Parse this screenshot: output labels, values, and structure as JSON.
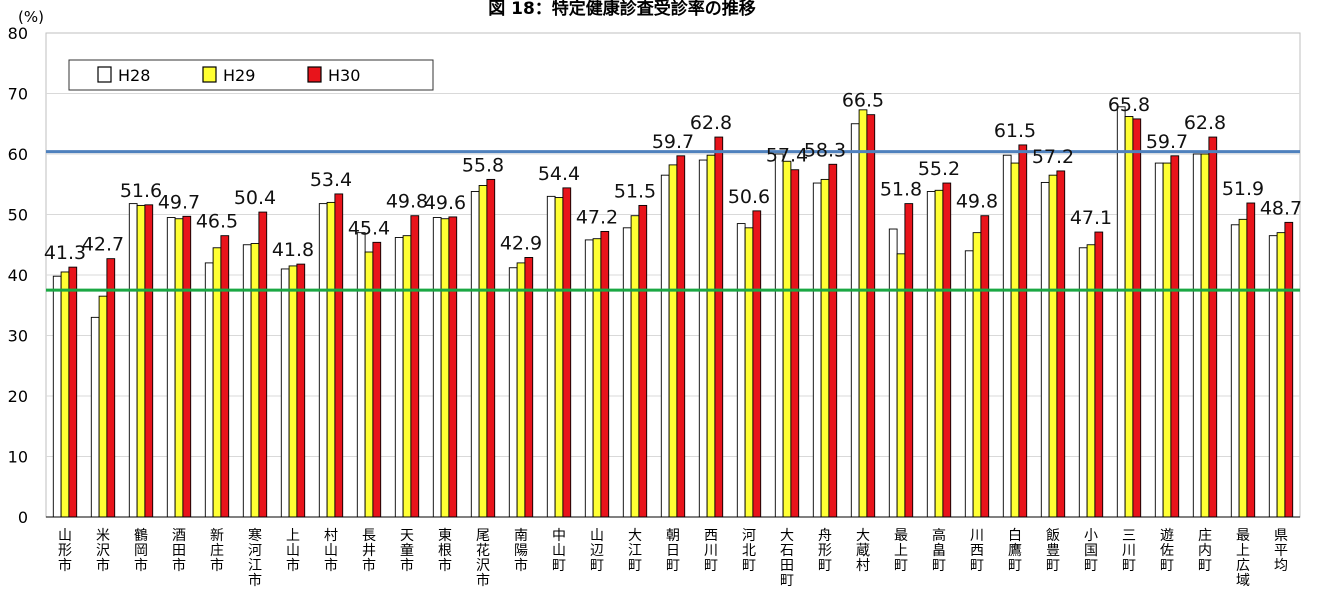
{
  "chart_data": {
    "type": "bar",
    "title": "図 18：特定健康診査受診率の推移",
    "ylabel": "(%)",
    "ylim": [
      0,
      80
    ],
    "yticks": [
      0,
      10,
      20,
      30,
      40,
      50,
      60,
      70,
      80
    ],
    "grid": true,
    "legend_position": "top-left",
    "categories": [
      "山形市",
      "米沢市",
      "鶴岡市",
      "酒田市",
      "新庄市",
      "寒河江市",
      "上山市",
      "村山市",
      "長井市",
      "天童市",
      "東根市",
      "尾花沢市",
      "南陽市",
      "中山町",
      "山辺町",
      "大江町",
      "朝日町",
      "西川町",
      "河北町",
      "大石田町",
      "舟形町",
      "大蔵村",
      "最上町",
      "高畠町",
      "川西町",
      "白鷹町",
      "飯豊町",
      "小国町",
      "三川町",
      "遊佐町",
      "庄内町",
      "最上広域",
      "県平均"
    ],
    "series": [
      {
        "name": "H28",
        "color": "#ffffff",
        "values": [
          39.8,
          33.0,
          51.8,
          49.5,
          42.0,
          45.0,
          41.0,
          51.8,
          47.0,
          46.2,
          49.5,
          53.8,
          41.2,
          53.0,
          45.8,
          47.8,
          56.5,
          59.0,
          48.5,
          60.0,
          55.2,
          65.0,
          47.6,
          53.8,
          44.0,
          59.8,
          55.3,
          44.5,
          67.8,
          58.5,
          60.0,
          48.3,
          46.5
        ]
      },
      {
        "name": "H29",
        "color": "#ffff33",
        "values": [
          40.5,
          36.5,
          51.5,
          49.3,
          44.5,
          45.2,
          41.5,
          52.0,
          43.8,
          46.5,
          49.3,
          54.8,
          42.0,
          52.8,
          46.0,
          49.8,
          58.2,
          59.8,
          47.8,
          58.8,
          55.8,
          67.3,
          43.5,
          54.0,
          47.0,
          58.5,
          56.5,
          45.0,
          66.2,
          58.5,
          60.0,
          49.2,
          47.0
        ]
      },
      {
        "name": "H30",
        "color": "#e8141b",
        "values": [
          41.3,
          42.7,
          51.6,
          49.7,
          46.5,
          50.4,
          41.8,
          53.4,
          45.4,
          49.8,
          49.6,
          55.8,
          42.9,
          54.4,
          47.2,
          51.5,
          59.7,
          62.8,
          50.6,
          57.4,
          58.3,
          66.5,
          51.8,
          55.2,
          49.8,
          61.5,
          57.2,
          47.1,
          65.8,
          59.7,
          62.8,
          51.9,
          48.7
        ]
      }
    ],
    "data_labels": [
      "41.3",
      "42.7",
      "51.6",
      "49.7",
      "46.5",
      "50.4",
      "41.8",
      "53.4",
      "45.4",
      "49.8",
      "49.6",
      "55.8",
      "42.9",
      "54.4",
      "47.2",
      "51.5",
      "59.7",
      "62.8",
      "50.6",
      "57.4",
      "58.3",
      "66.5",
      "51.8",
      "55.2",
      "49.8",
      "61.5",
      "57.2",
      "47.1",
      "65.8",
      "59.7",
      "62.8",
      "51.9",
      "48.7"
    ],
    "reference_lines": [
      {
        "value": 60.4,
        "color": "#4f81bd"
      },
      {
        "value": 37.5,
        "color": "#1aa843"
      }
    ]
  }
}
